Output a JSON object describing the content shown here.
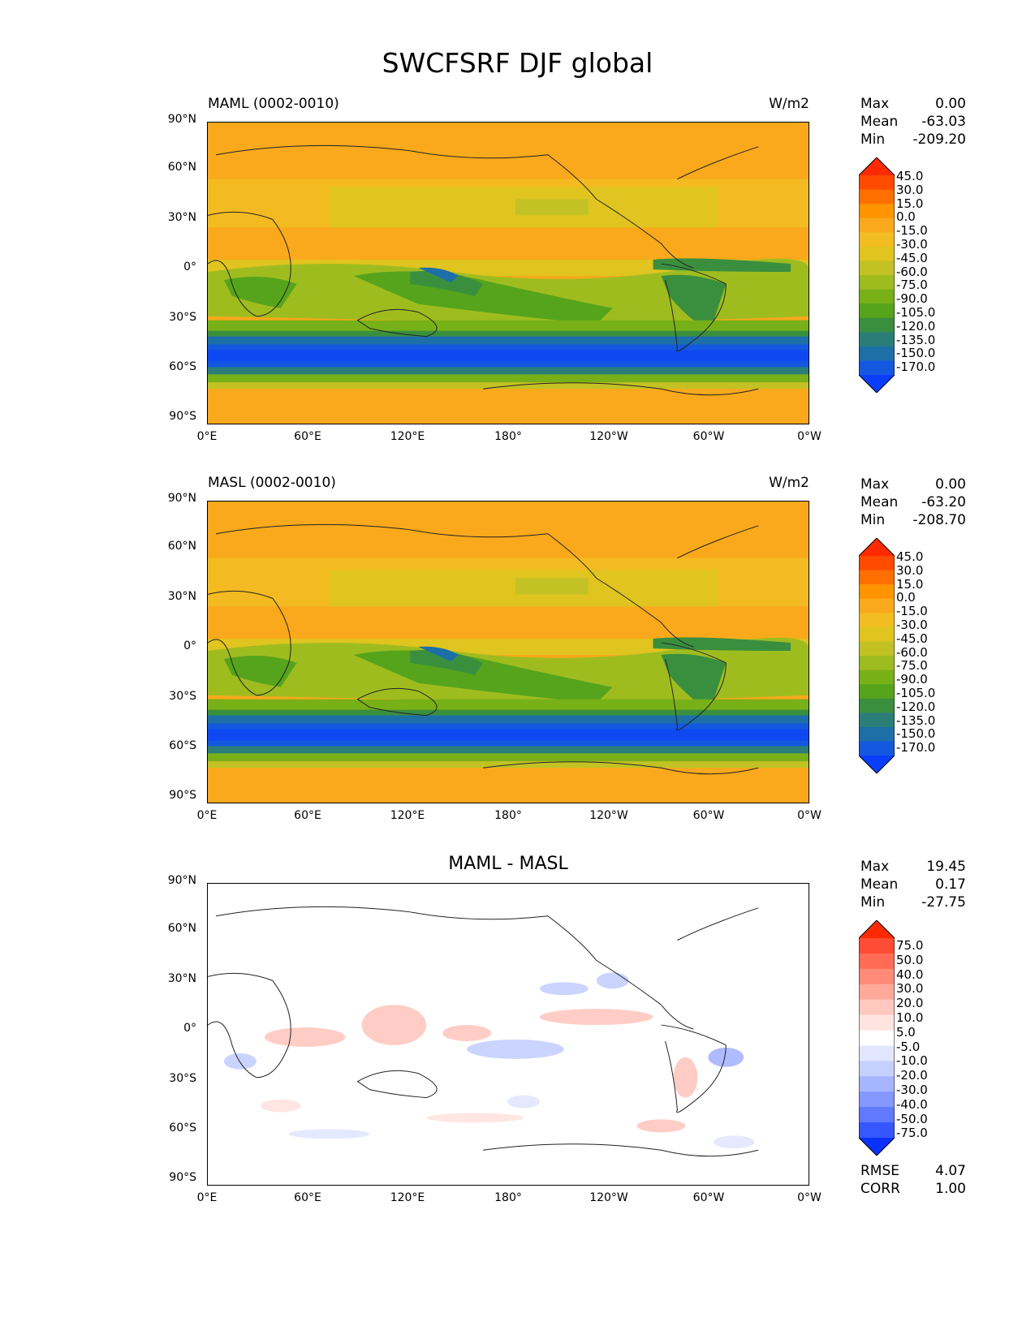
{
  "title": "SWCFSRF DJF global",
  "axes": {
    "yticks": [
      "90°N",
      "60°N",
      "30°N",
      "0°",
      "30°S",
      "60°S",
      "90°S"
    ],
    "xticks": [
      "0°E",
      "60°E",
      "120°E",
      "180°",
      "120°W",
      "60°W",
      "0°W"
    ]
  },
  "panels": [
    {
      "left_title": "MAML (0002-0010)",
      "right_title": "W/m2",
      "center_title": "",
      "stats": [
        {
          "label": "Max",
          "value": "0.00"
        },
        {
          "label": "Mean",
          "value": "-63.03"
        },
        {
          "label": "Min",
          "value": "-209.20"
        }
      ]
    },
    {
      "left_title": "MASL (0002-0010)",
      "right_title": "W/m2",
      "center_title": "",
      "stats": [
        {
          "label": "Max",
          "value": "0.00"
        },
        {
          "label": "Mean",
          "value": "-63.20"
        },
        {
          "label": "Min",
          "value": "-208.70"
        }
      ]
    },
    {
      "left_title": "",
      "right_title": "",
      "center_title": "MAML - MASL",
      "stats": [
        {
          "label": "Max",
          "value": "19.45"
        },
        {
          "label": "Mean",
          "value": "0.17"
        },
        {
          "label": "Min",
          "value": "-27.75"
        }
      ],
      "extra_stats": [
        {
          "label": "RMSE",
          "value": "4.07"
        },
        {
          "label": "CORR",
          "value": "1.00"
        }
      ]
    }
  ],
  "colorbar_main": {
    "labels": [
      "45.0",
      "30.0",
      "15.0",
      "0.0",
      "-15.0",
      "-30.0",
      "-45.0",
      "-60.0",
      "-75.0",
      "-90.0",
      "-105.0",
      "-120.0",
      "-135.0",
      "-150.0",
      "-170.0"
    ],
    "colors": [
      "#ff2a00",
      "#ff4a00",
      "#ff6f00",
      "#ff9400",
      "#f9a91b",
      "#f2bd22",
      "#e0c41f",
      "#c3c224",
      "#9fbc1f",
      "#78b018",
      "#55a41c",
      "#3a8f3f",
      "#2b7e78",
      "#1d6fa7",
      "#1458df",
      "#0a3eff"
    ]
  },
  "colorbar_diff": {
    "labels": [
      "75.0",
      "50.0",
      "40.0",
      "30.0",
      "20.0",
      "10.0",
      "5.0",
      "-5.0",
      "-10.0",
      "-20.0",
      "-30.0",
      "-40.0",
      "-50.0",
      "-75.0"
    ],
    "colors": [
      "#ff2a00",
      "#ff4d35",
      "#ff6b55",
      "#ff8a78",
      "#ffa99b",
      "#ffc8bf",
      "#ffe4df",
      "#ffffff",
      "#e2e7ff",
      "#c6d0ff",
      "#a6b5ff",
      "#8598ff",
      "#6079ff",
      "#3656ff",
      "#0a32ff"
    ]
  },
  "chart_data": [
    {
      "type": "heatmap",
      "title": "MAML (0002-0010)",
      "units": "W/m2",
      "lat_range": [
        -90,
        90
      ],
      "lon_range": [
        0,
        360
      ],
      "levels": [
        -170,
        -150,
        -135,
        -120,
        -105,
        -90,
        -75,
        -60,
        -45,
        -30,
        -15,
        0,
        15,
        30,
        45
      ],
      "max": 0.0,
      "mean": -63.03,
      "min": -209.2
    },
    {
      "type": "heatmap",
      "title": "MASL (0002-0010)",
      "units": "W/m2",
      "lat_range": [
        -90,
        90
      ],
      "lon_range": [
        0,
        360
      ],
      "levels": [
        -170,
        -150,
        -135,
        -120,
        -105,
        -90,
        -75,
        -60,
        -45,
        -30,
        -15,
        0,
        15,
        30,
        45
      ],
      "max": 0.0,
      "mean": -63.2,
      "min": -208.7
    },
    {
      "type": "heatmap",
      "title": "MAML - MASL",
      "lat_range": [
        -90,
        90
      ],
      "lon_range": [
        0,
        360
      ],
      "levels": [
        -75,
        -50,
        -40,
        -30,
        -20,
        -10,
        -5,
        5,
        10,
        20,
        30,
        40,
        50,
        75
      ],
      "max": 19.45,
      "mean": 0.17,
      "min": -27.75,
      "rmse": 4.07,
      "corr": 1.0
    }
  ]
}
